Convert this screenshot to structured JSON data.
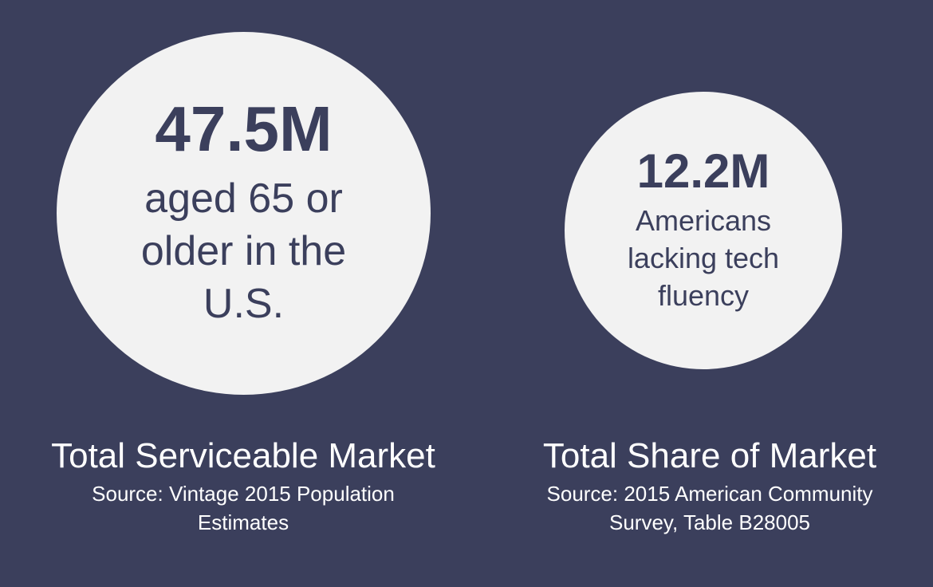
{
  "left": {
    "stat_value": "47.5M",
    "stat_text": "aged 65 or\nolder in the\nU.S.",
    "title": "Total Serviceable Market",
    "source": "Source: Vintage 2015 Population\nEstimates"
  },
  "right": {
    "stat_value": "12.2M",
    "stat_text": "Americans\nlacking tech\nfluency",
    "title": "Total Share of Market",
    "source": "Source: 2015 American Community\nSurvey, Table B28005"
  },
  "colors": {
    "background": "#3b3f5c",
    "circle": "#f2f2f2",
    "text_dark": "#3b3f5c",
    "text_light": "#ffffff"
  }
}
